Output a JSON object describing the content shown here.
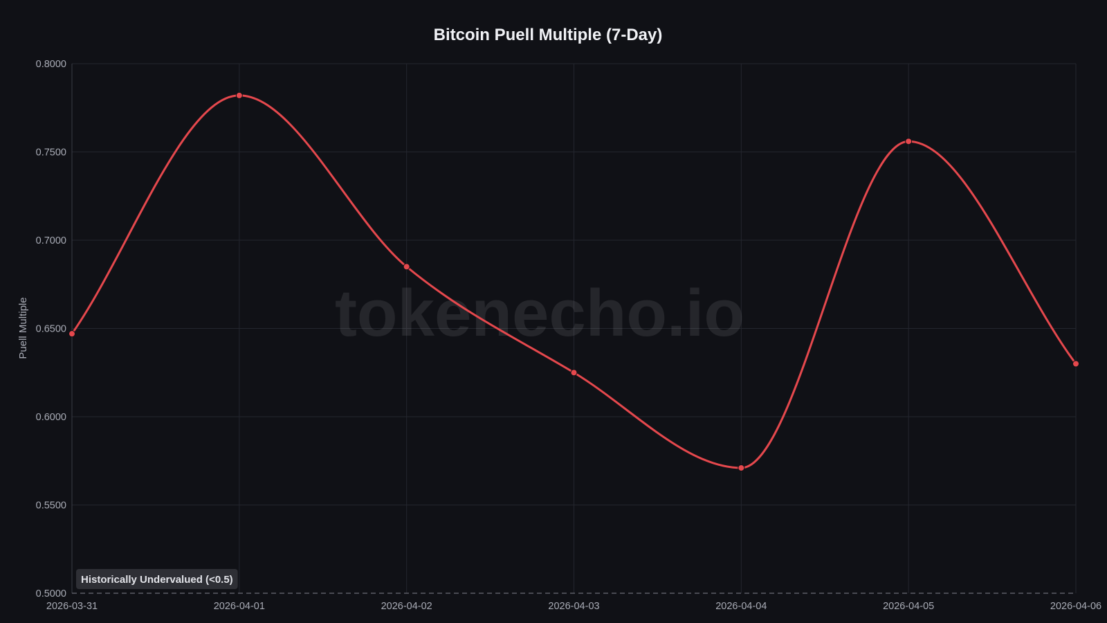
{
  "chart_data": {
    "type": "line",
    "title": "Bitcoin Puell Multiple (7-Day)",
    "xlabel": "",
    "ylabel": "Puell Multiple",
    "x": [
      "2026-03-31",
      "2026-04-01",
      "2026-04-02",
      "2026-04-03",
      "2026-04-04",
      "2026-04-05",
      "2026-04-06"
    ],
    "series": [
      {
        "values": [
          0.647,
          0.782,
          0.685,
          0.625,
          0.571,
          0.756,
          0.63
        ]
      }
    ],
    "ylim": [
      0.5,
      0.8
    ],
    "yticks": [
      "0.5000",
      "0.5500",
      "0.6000",
      "0.6500",
      "0.7000",
      "0.7500",
      "0.8000"
    ],
    "grid": true,
    "line_color": "#e5484d",
    "threshold": {
      "value": 0.5,
      "label": "Historically Undervalued (<0.5)"
    },
    "watermark": "tokenecho.io"
  }
}
